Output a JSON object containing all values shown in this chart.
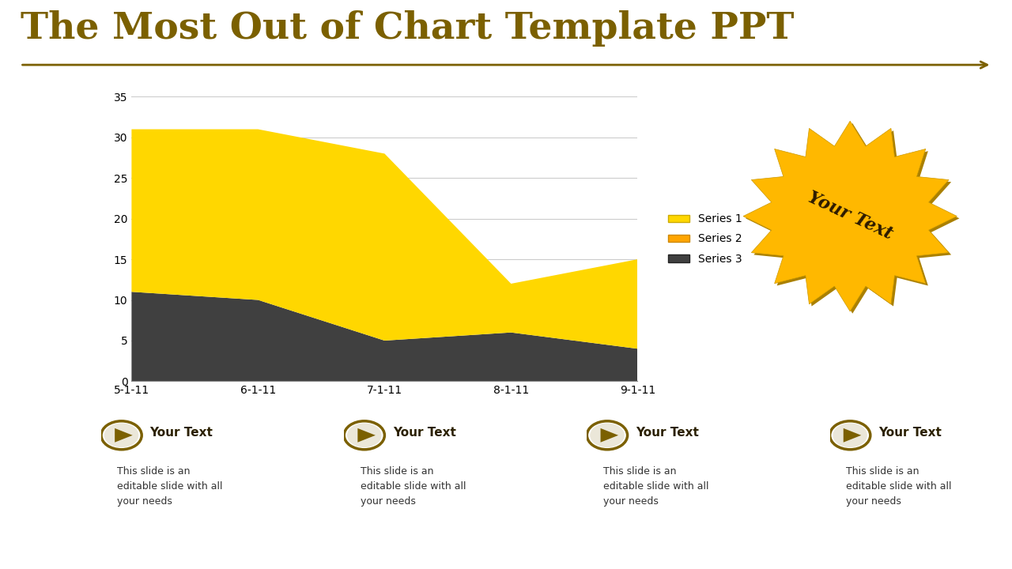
{
  "title": "The Most Out of Chart Template PPT",
  "title_color": "#7B6000",
  "title_fontsize": 34,
  "background_color": "#FFFFFF",
  "x_labels": [
    "5-1-11",
    "6-1-11",
    "7-1-11",
    "8-1-11",
    "9-1-11"
  ],
  "x_values": [
    0,
    1,
    2,
    3,
    4
  ],
  "series3_values": [
    11,
    10,
    5,
    6,
    4
  ],
  "stacked_top": [
    31,
    31,
    28,
    12,
    15
  ],
  "color_series1": "#FFD700",
  "color_series2": "#FFA500",
  "color_series3": "#404040",
  "ylim": [
    0,
    35
  ],
  "yticks": [
    0,
    5,
    10,
    15,
    20,
    25,
    30,
    35
  ],
  "legend_labels": [
    "Series 1",
    "Series 2",
    "Series 3"
  ],
  "arrow_color": "#7B6000",
  "badge_color": "#FFB800",
  "badge_text": "Your Text",
  "bottom_items": [
    {
      "title": "Your Text",
      "body": "This slide is an\neditable slide with all\nyour needs"
    },
    {
      "title": "Your Text",
      "body": "This slide is an\neditable slide with all\nyour needs"
    },
    {
      "title": "Your Text",
      "body": "This slide is an\neditable slide with all\nyour needs"
    },
    {
      "title": "Your Text",
      "body": "This slide is an\neditable slide with all\nyour needs"
    }
  ],
  "icon_color": "#7B6000",
  "icon_border_color": "#7B6000"
}
